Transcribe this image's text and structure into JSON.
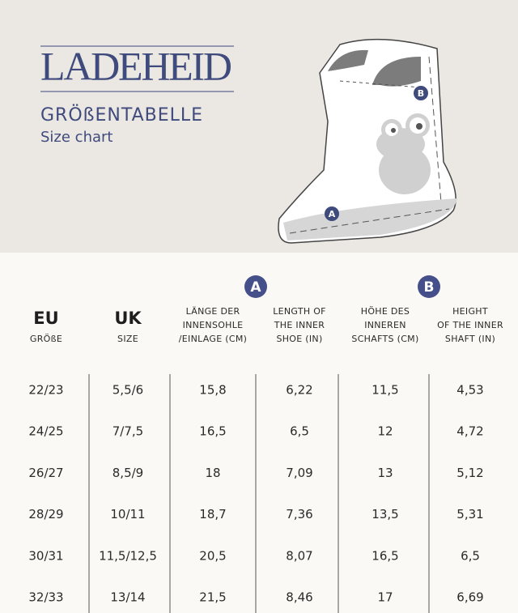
{
  "header": {
    "brand": "LADEHEID",
    "title": "GRÖßENTABELLE",
    "subtitle": "Size chart"
  },
  "group_labels": [
    "A",
    "B"
  ],
  "table": {
    "columns": [
      {
        "title": "EU",
        "sub": "GRÖßE"
      },
      {
        "title": "UK",
        "sub": "SIZE"
      },
      {
        "lines": [
          "LÄNGE DER",
          "INNENSOHLE",
          "/EINLAGE (CM)"
        ]
      },
      {
        "lines": [
          "LENGTH OF",
          "THE INNER",
          "SHOE (IN)"
        ]
      },
      {
        "lines": [
          "HÖHE DES",
          "INNEREN",
          "SCHAFTS (CM)"
        ]
      },
      {
        "lines": [
          "HEIGHT",
          "OF THE INNER",
          "SHAFT (IN)"
        ]
      }
    ],
    "rows": [
      [
        "22/23",
        "5,5/6",
        "15,8",
        "6,22",
        "11,5",
        "4,53"
      ],
      [
        "24/25",
        "7/7,5",
        "16,5",
        "6,5",
        "12",
        "4,72"
      ],
      [
        "26/27",
        "8,5/9",
        "18",
        "7,09",
        "13",
        "5,12"
      ],
      [
        "28/29",
        "10/11",
        "18,7",
        "7,36",
        "13,5",
        "5,31"
      ],
      [
        "30/31",
        "11,5/12,5",
        "20,5",
        "8,07",
        "16,5",
        "6,5"
      ],
      [
        "32/33",
        "13/14",
        "21,5",
        "8,46",
        "17",
        "6,69"
      ]
    ]
  }
}
